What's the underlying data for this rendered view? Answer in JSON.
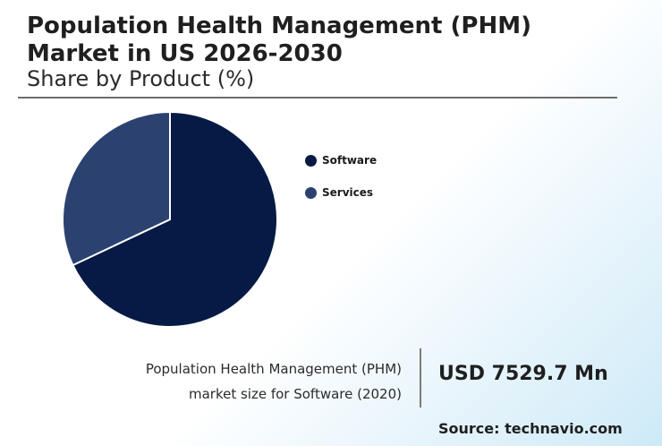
{
  "header": {
    "title_line1": "Population Health Management (PHM)",
    "title_line2": "Market in US 2026-2030",
    "subtitle": "Share by Product (%)"
  },
  "chart_data": {
    "type": "pie",
    "categories": [
      "Software",
      "Services"
    ],
    "values": [
      68,
      32
    ],
    "colors": [
      "#061a45",
      "#2b4271"
    ],
    "legend_position": "right"
  },
  "caption": {
    "line1": "Population Health Management (PHM)",
    "line2": "market size for Software (2020)"
  },
  "highlight_value": "USD 7529.7 Mn",
  "source": "Source: technavio.com"
}
